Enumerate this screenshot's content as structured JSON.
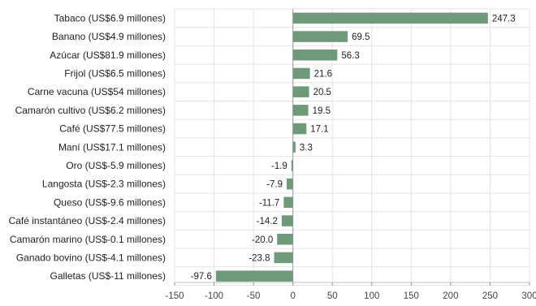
{
  "chart_data": {
    "type": "bar",
    "orientation": "horizontal",
    "title": "",
    "xlabel": "",
    "ylabel": "",
    "xlim": [
      -150,
      300
    ],
    "xticks": [
      -150,
      -100,
      -50,
      0,
      50,
      100,
      150,
      200,
      250,
      300
    ],
    "grid": true,
    "bar_color": "#6e9a79",
    "categories": [
      "Tabaco (US$6.9 millones)",
      "Banano (US$4.9 millones)",
      "Azúcar (US$81.9 millones)",
      "Frijol (US$6.5 millones)",
      "Carne vacuna (US$54 millones)",
      "Camarón cultivo (US$6.2 millones)",
      "Café (US$77.5 millones)",
      "Maní (US$17.1 millones)",
      "Oro (US$-5.9 millones)",
      "Langosta (US$-2.3 millones)",
      "Queso (US$-9.6 millones)",
      "Café instantáneo (US$-2.4 millones)",
      "Camarón marino (US$-0.1 millones)",
      "Ganado bovino (US$-4.1 millones)",
      "Galletas (US$-11 millones)"
    ],
    "values": [
      247.3,
      69.5,
      56.3,
      21.6,
      20.5,
      19.5,
      17.1,
      3.3,
      -1.9,
      -7.9,
      -11.7,
      -14.2,
      -20.0,
      -23.8,
      -97.6
    ],
    "value_labels": [
      "247.3",
      "69.5",
      "56.3",
      "21.6",
      "20.5",
      "19.5",
      "17.1",
      "3.3",
      "-1.9",
      "-7.9",
      "-11.7",
      "-14.2",
      "-20.0",
      "-23.8",
      "-97.6"
    ]
  }
}
